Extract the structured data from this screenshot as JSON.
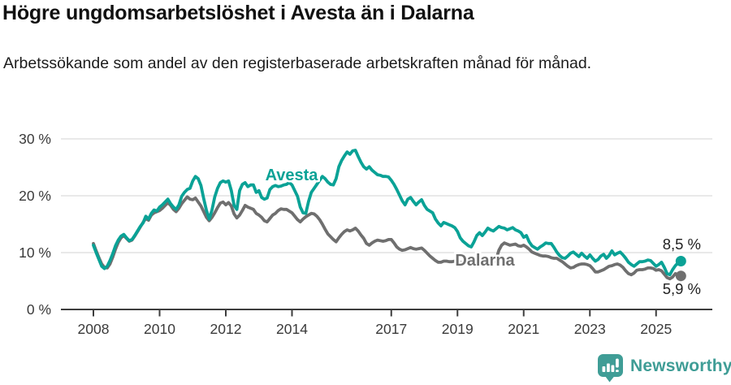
{
  "header": {
    "title": "Högre ungdomsarbetslöshet i Avesta än i Dalarna",
    "subtitle": "Arbetssökande som andel av den registerbaserade arbetskraften månad för månad."
  },
  "chart_data": {
    "type": "line",
    "x_unit": "month",
    "x_range": [
      "2008-01",
      "2025-10"
    ],
    "x_tick_years": [
      2008,
      2010,
      2012,
      2014,
      2017,
      2019,
      2021,
      2023,
      2025
    ],
    "x_tick_labels": [
      "2008",
      "2010",
      "2012",
      "2014",
      "2017",
      "2019",
      "2021",
      "2023",
      "2025"
    ],
    "y_tick_values": [
      0,
      10,
      20,
      30
    ],
    "y_tick_labels": [
      "0 %",
      "10 %",
      "20 %",
      "30 %"
    ],
    "ylim": [
      0,
      32
    ],
    "grid": "horizontal",
    "legend_position": "inline-labels",
    "series": [
      {
        "name": "Avesta",
        "color": "#0aa296",
        "end_label": "8,5 %",
        "end_value": 8.5,
        "values": [
          11.3,
          10.0,
          8.8,
          7.6,
          7.2,
          7.6,
          8.6,
          9.8,
          11.2,
          12.2,
          12.9,
          13.2,
          12.6,
          12.1,
          12.3,
          13.0,
          13.8,
          14.6,
          15.2,
          16.4,
          15.9,
          16.9,
          17.5,
          17.3,
          18.0,
          18.4,
          18.9,
          19.4,
          18.6,
          18.0,
          17.6,
          18.4,
          19.9,
          20.6,
          21.1,
          21.3,
          22.6,
          23.4,
          23.0,
          21.8,
          19.5,
          17.4,
          15.9,
          17.5,
          19.8,
          21.3,
          22.3,
          22.6,
          22.4,
          22.6,
          20.9,
          18.3,
          17.6,
          20.9,
          22.0,
          22.3,
          21.6,
          21.9,
          21.9,
          20.6,
          20.9,
          19.7,
          19.4,
          19.6,
          21.1,
          21.6,
          21.8,
          21.6,
          21.7,
          21.9,
          22.0,
          22.3,
          21.9,
          20.9,
          19.9,
          18.0,
          17.0,
          16.9,
          19.0,
          20.6,
          21.3,
          22.0,
          22.7,
          23.4,
          23.0,
          22.4,
          22.0,
          21.9,
          23.0,
          25.1,
          26.2,
          27.0,
          27.7,
          27.3,
          27.9,
          28.0,
          26.9,
          25.9,
          25.1,
          24.7,
          25.1,
          24.5,
          24.1,
          23.7,
          23.6,
          23.4,
          23.4,
          23.3,
          22.7,
          22.0,
          21.1,
          20.1,
          19.1,
          18.4,
          19.4,
          19.7,
          19.0,
          18.4,
          18.9,
          19.3,
          18.3,
          17.6,
          17.3,
          17.0,
          15.9,
          15.2,
          14.7,
          15.3,
          15.1,
          14.9,
          14.7,
          14.4,
          13.7,
          12.6,
          12.0,
          11.6,
          11.2,
          11.0,
          11.9,
          13.0,
          13.5,
          13.0,
          13.6,
          14.3,
          14.0,
          13.8,
          14.2,
          14.6,
          14.4,
          14.3,
          14.0,
          14.2,
          14.4,
          14.0,
          13.8,
          13.5,
          12.7,
          13.0,
          11.9,
          11.2,
          10.9,
          10.6,
          11.0,
          11.3,
          11.7,
          11.6,
          11.6,
          10.9,
          10.1,
          9.5,
          9.1,
          9.0,
          9.4,
          9.9,
          10.1,
          9.7,
          9.3,
          9.9,
          9.4,
          9.0,
          9.6,
          9.0,
          8.5,
          8.8,
          9.4,
          9.7,
          9.0,
          9.5,
          10.3,
          9.6,
          9.9,
          10.1,
          9.6,
          9.0,
          8.3,
          7.9,
          7.6,
          8.0,
          8.4,
          8.4,
          8.5,
          8.7,
          8.6,
          8.1,
          7.6,
          7.9,
          8.3,
          7.4,
          6.3,
          6.1,
          7.0,
          7.7,
          8.2,
          8.5
        ]
      },
      {
        "name": "Dalarna",
        "color": "#6f6f6f",
        "end_label": "5,9 %",
        "end_value": 5.9,
        "values": [
          11.6,
          10.3,
          9.1,
          8.0,
          7.4,
          7.3,
          8.0,
          9.2,
          10.6,
          11.8,
          12.6,
          13.0,
          12.5,
          12.0,
          12.2,
          12.9,
          13.7,
          14.5,
          15.3,
          16.0,
          15.7,
          16.6,
          17.0,
          17.2,
          17.4,
          17.8,
          18.3,
          18.8,
          18.3,
          17.6,
          17.2,
          17.8,
          18.6,
          19.2,
          19.8,
          19.4,
          19.3,
          19.6,
          18.9,
          18.2,
          17.2,
          16.2,
          15.6,
          16.2,
          17.0,
          17.9,
          18.7,
          18.9,
          18.4,
          18.8,
          18.2,
          16.8,
          16.1,
          16.6,
          17.4,
          18.3,
          18.0,
          17.8,
          17.6,
          16.9,
          16.6,
          16.2,
          15.6,
          15.4,
          16.0,
          16.6,
          16.9,
          17.4,
          17.7,
          17.6,
          17.6,
          17.3,
          17.0,
          16.4,
          15.8,
          15.4,
          15.9,
          16.3,
          16.6,
          16.9,
          16.8,
          16.4,
          15.8,
          15.0,
          14.1,
          13.3,
          12.8,
          12.3,
          11.9,
          12.6,
          13.2,
          13.7,
          14.0,
          13.8,
          14.0,
          14.3,
          13.8,
          13.1,
          12.5,
          11.6,
          11.3,
          11.7,
          12.0,
          12.2,
          12.1,
          12.0,
          12.1,
          12.3,
          12.3,
          11.7,
          11.0,
          10.6,
          10.4,
          10.5,
          10.7,
          10.9,
          10.7,
          10.6,
          10.7,
          10.8,
          10.4,
          9.9,
          9.4,
          9.0,
          8.6,
          8.3,
          8.3,
          8.5,
          8.5,
          8.4,
          8.4,
          8.5,
          8.4,
          8.3,
          8.2,
          8.0,
          7.9,
          7.9,
          8.0,
          8.2,
          8.2,
          8.1,
          8.1,
          8.2,
          8.2,
          8.3,
          8.8,
          10.4,
          11.3,
          11.7,
          11.5,
          11.3,
          11.4,
          11.5,
          11.2,
          11.1,
          11.3,
          11.0,
          10.6,
          10.1,
          9.9,
          9.7,
          9.5,
          9.4,
          9.4,
          9.3,
          9.1,
          9.0,
          9.0,
          8.7,
          8.4,
          8.0,
          7.6,
          7.3,
          7.4,
          7.7,
          7.9,
          8.0,
          8.0,
          7.9,
          7.7,
          7.2,
          6.6,
          6.6,
          6.8,
          7.0,
          7.3,
          7.6,
          7.7,
          7.9,
          8.0,
          7.8,
          7.4,
          6.8,
          6.3,
          6.1,
          6.4,
          6.9,
          7.0,
          7.0,
          7.1,
          7.3,
          7.3,
          7.2,
          6.9,
          7.0,
          6.8,
          6.2,
          5.6,
          5.4,
          5.7,
          6.3,
          6.1,
          5.9
        ]
      }
    ]
  },
  "branding": {
    "logo_text": "Newsworthy",
    "logo_icon": "bar-chart-speech-bubble-icon",
    "logo_color": "#3f9d96"
  }
}
